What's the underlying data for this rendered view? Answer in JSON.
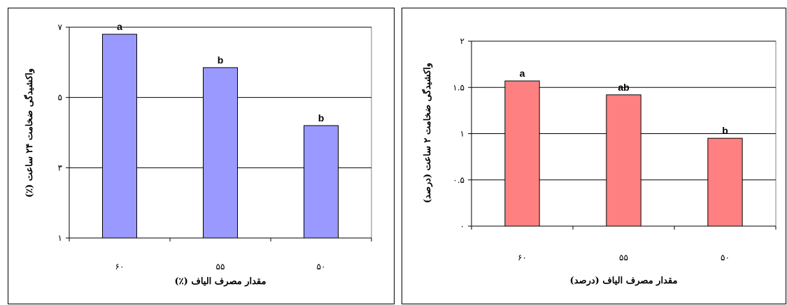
{
  "chart_data": [
    {
      "type": "bar",
      "categories": [
        "۶۰",
        "۵۵",
        "۵۰"
      ],
      "values": [
        6.8,
        5.85,
        4.2
      ],
      "significance_letters": [
        "a",
        "b",
        "b"
      ],
      "ylabel": "واکشیدگی ضخامت ۲۴ ساعت (٪)",
      "xlabel": "مقدار مصرف الیاف (٪)",
      "ylim": [
        1,
        7
      ],
      "yticks": [
        1,
        3,
        5,
        7
      ],
      "ytick_labels": [
        "۱",
        "۳",
        "۵",
        "۷"
      ],
      "grid": true,
      "bar_color": "#9999FF"
    },
    {
      "type": "bar",
      "categories": [
        "۶۰",
        "۵۵",
        "۵۰"
      ],
      "values": [
        1.57,
        1.42,
        0.95
      ],
      "significance_letters": [
        "a",
        "ab",
        "b"
      ],
      "ylabel": "واکشیدگی ضخامت ۲ ساعت (درصد)",
      "xlabel": "مقدار مصرف الیاف (درصد)",
      "ylim": [
        0,
        2
      ],
      "yticks": [
        0,
        0.5,
        1,
        1.5,
        2
      ],
      "ytick_labels": [
        "۰",
        "۰.۵",
        "۱",
        "۱.۵",
        "۲"
      ],
      "grid": true,
      "bar_color": "#FF8080"
    }
  ]
}
